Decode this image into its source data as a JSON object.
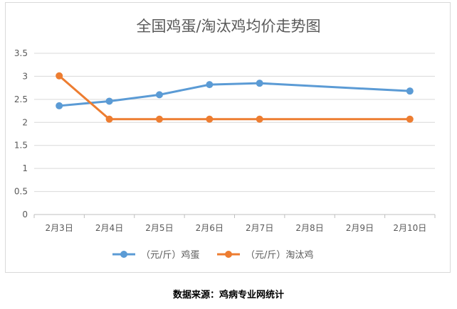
{
  "chart_data": {
    "type": "line",
    "title": "全国鸡蛋/淘汰鸡均价走势图",
    "xlabel": "",
    "ylabel": "",
    "categories": [
      "2月3日",
      "2月4日",
      "2月5日",
      "2月6日",
      "2月7日",
      "2月8日",
      "2月9日",
      "2月10日"
    ],
    "ylim": [
      0,
      3.5
    ],
    "yticks": [
      "0",
      "0.5",
      "1",
      "1.5",
      "2",
      "2.5",
      "3",
      "3.5"
    ],
    "grid": true,
    "legend_position": "bottom",
    "series": [
      {
        "name": "（元/斤）鸡蛋",
        "color": "#5b9bd5",
        "points": [
          [
            0,
            2.36
          ],
          [
            1,
            2.46
          ],
          [
            2,
            2.6
          ],
          [
            3,
            2.82
          ],
          [
            4,
            2.85
          ],
          [
            7,
            2.68
          ]
        ]
      },
      {
        "name": "（元/斤）淘汰鸡",
        "color": "#ed7d31",
        "points": [
          [
            0,
            3.01
          ],
          [
            1,
            2.07
          ],
          [
            2,
            2.07
          ],
          [
            3,
            2.07
          ],
          [
            4,
            2.07
          ],
          [
            7,
            2.07
          ]
        ]
      }
    ]
  },
  "source_note": "数据来源：鸡病专业网统计"
}
